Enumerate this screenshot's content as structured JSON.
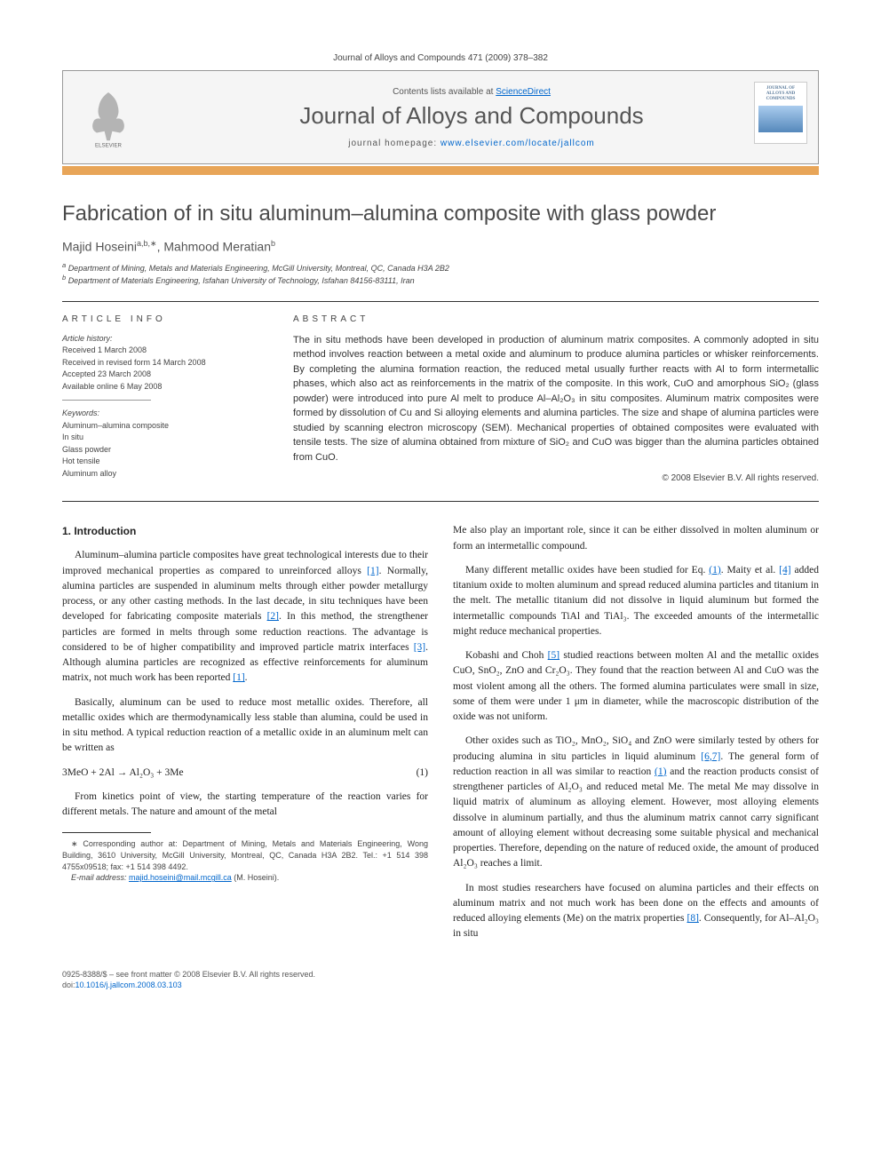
{
  "journal_header": "Journal of Alloys and Compounds 471 (2009) 378–382",
  "contents_bar": {
    "contents_label_prefix": "Contents lists available at ",
    "contents_link": "ScienceDirect",
    "journal_name": "Journal of Alloys and Compounds",
    "homepage_prefix": "journal homepage: ",
    "homepage_url": "www.elsevier.com/locate/jallcom",
    "publisher": "ELSEVIER",
    "right_logo_text": "JOURNAL OF ALLOYS AND COMPOUNDS"
  },
  "article": {
    "title": "Fabrication of in situ aluminum–alumina composite with glass powder",
    "authors_html": "Majid Hoseini",
    "author1_sup": "a,b,∗",
    "author_sep": ", ",
    "author2": "Mahmood Meratian",
    "author2_sup": "b",
    "affiliations": [
      "Department of Mining, Metals and Materials Engineering, McGill University, Montreal, QC, Canada H3A 2B2",
      "Department of Materials Engineering, Isfahan University of Technology, Isfahan 84156-83111, Iran"
    ],
    "aff_sup": [
      "a",
      "b"
    ]
  },
  "info": {
    "header": "ARTICLE INFO",
    "history_label": "Article history:",
    "received": "Received 1 March 2008",
    "revised": "Received in revised form 14 March 2008",
    "accepted": "Accepted 23 March 2008",
    "online": "Available online 6 May 2008",
    "keywords_label": "Keywords:",
    "keywords": [
      "Aluminum–alumina composite",
      "In situ",
      "Glass powder",
      "Hot tensile",
      "Aluminum alloy"
    ]
  },
  "abstract": {
    "header": "ABSTRACT",
    "text": "The in situ methods have been developed in production of aluminum matrix composites. A commonly adopted in situ method involves reaction between a metal oxide and aluminum to produce alumina particles or whisker reinforcements. By completing the alumina formation reaction, the reduced metal usually further reacts with Al to form intermetallic phases, which also act as reinforcements in the matrix of the composite. In this work, CuO and amorphous SiO₂ (glass powder) were introduced into pure Al melt to produce Al–Al₂O₃ in situ composites. Aluminum matrix composites were formed by dissolution of Cu and Si alloying elements and alumina particles. The size and shape of alumina particles were studied by scanning electron microscopy (SEM). Mechanical properties of obtained composites were evaluated with tensile tests. The size of alumina obtained from mixture of SiO₂ and CuO was bigger than the alumina particles obtained from CuO.",
    "copyright": "© 2008 Elsevier B.V. All rights reserved."
  },
  "body": {
    "section1_title": "1. Introduction",
    "p1": "Aluminum–alumina particle composites have great technological interests due to their improved mechanical properties as compared to unreinforced alloys [1]. Normally, alumina particles are suspended in aluminum melts through either powder metallurgy process, or any other casting methods. In the last decade, in situ techniques have been developed for fabricating composite materials [2]. In this method, the strengthener particles are formed in melts through some reduction reactions. The advantage is considered to be of higher compatibility and improved particle matrix interfaces [3]. Although alumina particles are recognized as effective reinforcements for aluminum matrix, not much work has been reported [1].",
    "p2": "Basically, aluminum can be used to reduce most metallic oxides. Therefore, all metallic oxides which are thermodynamically less stable than alumina, could be used in in situ method. A typical reduction reaction of a metallic oxide in an aluminum melt can be written as",
    "eq1": "3MeO + 2Al → Al₂O₃ + 3Me",
    "eq1_num": "(1)",
    "p3": "From kinetics point of view, the starting temperature of the reaction varies for different metals. The nature and amount of the metal",
    "p4": "Me also play an important role, since it can be either dissolved in molten aluminum or form an intermetallic compound.",
    "p5": "Many different metallic oxides have been studied for Eq. (1). Maity et al. [4] added titanium oxide to molten aluminum and spread reduced alumina particles and titanium in the melt. The metallic titanium did not dissolve in liquid aluminum but formed the intermetallic compounds TiAl and TiAl₃. The exceeded amounts of the intermetallic might reduce mechanical properties.",
    "p6": "Kobashi and Choh [5] studied reactions between molten Al and the metallic oxides CuO, SnO₂, ZnO and Cr₂O₃. They found that the reaction between Al and CuO was the most violent among all the others. The formed alumina particulates were small in size, some of them were under 1 μm in diameter, while the macroscopic distribution of the oxide was not uniform.",
    "p7": "Other oxides such as TiO₂, MnO₂, SiO₄ and ZnO were similarly tested by others for producing alumina in situ particles in liquid aluminum [6,7]. The general form of reduction reaction in all was similar to reaction (1) and the reaction products consist of strengthener particles of Al₂O₃ and reduced metal Me. The metal Me may dissolve in liquid matrix of aluminum as alloying element. However, most alloying elements dissolve in aluminum partially, and thus the aluminum matrix cannot carry significant amount of alloying element without decreasing some suitable physical and mechanical properties. Therefore, depending on the nature of reduced oxide, the amount of produced Al₂O₃ reaches a limit.",
    "p8": "In most studies researchers have focused on alumina particles and their effects on aluminum matrix and not much work has been done on the effects and amounts of reduced alloying elements (Me) on the matrix properties [8]. Consequently, for Al–Al₂O₃ in situ"
  },
  "footnote": {
    "corr": "∗ Corresponding author at: Department of Mining, Metals and Materials Engineering, Wong Building, 3610 University, McGill University, Montreal, QC, Canada H3A 2B2. Tel.: +1 514 398 4755x09518; fax: +1 514 398 4492.",
    "email_label": "E-mail address: ",
    "email": "majid.hoseini@mail.mcgill.ca",
    "email_suffix": " (M. Hoseini)."
  },
  "footer": {
    "line1": "0925-8388/$ – see front matter © 2008 Elsevier B.V. All rights reserved.",
    "doi_prefix": "doi:",
    "doi": "10.1016/j.jallcom.2008.03.103"
  },
  "colors": {
    "orange_bar": "#e8a558",
    "link": "#0066cc",
    "text": "#333333"
  }
}
